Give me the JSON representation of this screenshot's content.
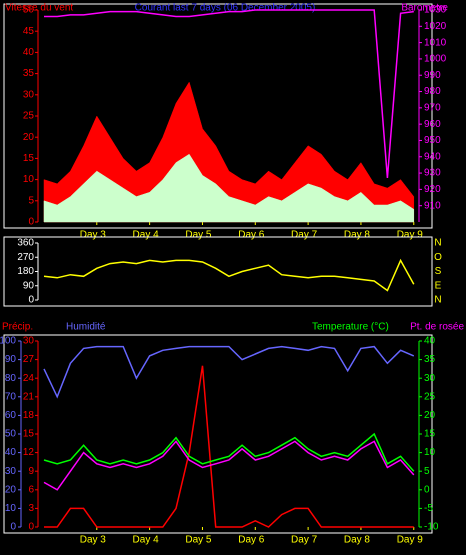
{
  "chart_data": [
    {
      "type": "area",
      "title": "Courant last 7 days (06 December 2005)",
      "x": [
        2.0,
        2.25,
        2.5,
        2.75,
        3.0,
        3.25,
        3.5,
        3.75,
        4.0,
        4.25,
        4.5,
        4.75,
        5.0,
        5.25,
        5.5,
        5.75,
        6.0,
        6.25,
        6.5,
        6.75,
        7.0,
        7.25,
        7.5,
        7.75,
        8.0,
        8.25,
        8.5,
        8.75,
        9.0
      ],
      "xlim": [
        1.925,
        9.08
      ],
      "xticks": [
        {
          "value": 3,
          "label": "Day 3"
        },
        {
          "value": 4,
          "label": "Day 4"
        },
        {
          "value": 5,
          "label": "Day 5"
        },
        {
          "value": 6,
          "label": "Day 6"
        },
        {
          "value": 7,
          "label": "Day 7"
        },
        {
          "value": 8,
          "label": "Day 8"
        },
        {
          "value": 9,
          "label": "Day 9"
        }
      ],
      "xtick_color": "#ffff00",
      "ylim": [
        0,
        50
      ],
      "yticks": [
        0,
        5,
        10,
        15,
        20,
        25,
        30,
        35,
        40,
        45,
        50
      ],
      "ycolor": "#ff0000",
      "y2lim": [
        900,
        1030
      ],
      "y2ticks": [
        910,
        920,
        930,
        940,
        950,
        960,
        970,
        980,
        990,
        1000,
        1010,
        1020,
        1030
      ],
      "y2color": "#ff00ff",
      "series": [
        {
          "name": "Vitesse du vent",
          "color": "#ff0000",
          "values": [
            10,
            9,
            12,
            18,
            25,
            20,
            15,
            12,
            14,
            20,
            28,
            33,
            22,
            18,
            12,
            10,
            9,
            12,
            10,
            14,
            18,
            16,
            12,
            10,
            14,
            9,
            8,
            10,
            6
          ]
        },
        {
          "color": "#ccffcc",
          "values": [
            5,
            4,
            6,
            9,
            12,
            10,
            8,
            6,
            7,
            10,
            14,
            16,
            11,
            9,
            6,
            5,
            4,
            6,
            5,
            7,
            9,
            8,
            6,
            5,
            7,
            4,
            4,
            5,
            3
          ]
        },
        {
          "name": "Barometre",
          "color": "#ff00ff",
          "axis": "y2",
          "values": [
            1026,
            1026,
            1027,
            1027,
            1028,
            1029,
            1029,
            1029,
            1028,
            1027,
            1026,
            1026,
            1027,
            1028,
            1029,
            1029,
            1030,
            1030,
            1030,
            1030,
            1030,
            1030,
            1030,
            1030,
            1030,
            1030,
            927,
            1028,
            1029
          ]
        }
      ]
    },
    {
      "type": "line",
      "x": [
        2.0,
        2.25,
        2.5,
        2.75,
        3.0,
        3.25,
        3.5,
        3.75,
        4.0,
        4.25,
        4.5,
        4.75,
        5.0,
        5.25,
        5.5,
        5.75,
        6.0,
        6.25,
        6.5,
        6.75,
        7.0,
        7.25,
        7.5,
        7.75,
        8.0,
        8.25,
        8.5,
        8.75,
        9.0
      ],
      "xlim": [
        1.925,
        9.08
      ],
      "ylim": [
        0,
        360
      ],
      "yticks": [
        0,
        90,
        180,
        270,
        360
      ],
      "ycolor": "#ffffff",
      "compass": [
        "N",
        "O",
        "S",
        "E",
        "N"
      ],
      "compass_color": "#ffff00",
      "series": [
        {
          "color": "#ffff00",
          "values": [
            150,
            140,
            160,
            150,
            200,
            230,
            240,
            230,
            250,
            240,
            250,
            250,
            240,
            200,
            150,
            180,
            200,
            220,
            160,
            150,
            140,
            150,
            150,
            140,
            130,
            120,
            60,
            250,
            100
          ]
        }
      ]
    },
    {
      "type": "line",
      "x": [
        2.0,
        2.25,
        2.5,
        2.75,
        3.0,
        3.25,
        3.5,
        3.75,
        4.0,
        4.25,
        4.5,
        4.75,
        5.0,
        5.25,
        5.5,
        5.75,
        6.0,
        6.25,
        6.5,
        6.75,
        7.0,
        7.25,
        7.5,
        7.75,
        8.0,
        8.25,
        8.5,
        8.75,
        9.0
      ],
      "xlim": [
        1.925,
        9.08
      ],
      "xticks": [
        {
          "value": 3,
          "label": "Day 3"
        },
        {
          "value": 4,
          "label": "Day 4"
        },
        {
          "value": 5,
          "label": "Day 5"
        },
        {
          "value": 6,
          "label": "Day 6"
        },
        {
          "value": 7,
          "label": "Day 7"
        },
        {
          "value": 8,
          "label": "Day 8"
        },
        {
          "value": 9,
          "label": "Day 9"
        }
      ],
      "xtick_color": "#ffff00",
      "ylim": [
        0,
        30
      ],
      "yticks": [
        0,
        3,
        6,
        9,
        12,
        15,
        18,
        21,
        24,
        27,
        30
      ],
      "ycolor": "#ff0000",
      "y2lim": [
        -10,
        40
      ],
      "y2ticks": [
        -10,
        -5,
        0,
        5,
        10,
        15,
        20,
        25,
        30,
        35,
        40
      ],
      "y2color": "#00ff00",
      "y3lim": [
        0,
        100
      ],
      "y3ticks": [
        0,
        10,
        20,
        30,
        40,
        50,
        60,
        70,
        80,
        90,
        100
      ],
      "y3color": "#6666ff",
      "series": [
        {
          "name": "Précip.",
          "color": "#ff0000",
          "values": [
            0,
            0,
            3,
            3,
            0,
            0,
            0,
            0,
            0,
            0,
            3,
            12,
            26,
            0,
            0,
            0,
            1,
            0,
            2,
            3,
            3,
            0,
            0,
            0,
            0,
            0,
            0,
            0,
            0
          ]
        },
        {
          "name": "Humidité",
          "color": "#6666ff",
          "axis": "y3",
          "values": [
            85,
            70,
            88,
            96,
            97,
            97,
            97,
            80,
            92,
            95,
            96,
            97,
            97,
            97,
            97,
            90,
            93,
            96,
            97,
            96,
            95,
            97,
            96,
            84,
            96,
            97,
            88,
            95,
            92
          ]
        },
        {
          "name": "Temperature (°C)",
          "color": "#00ff00",
          "axis": "y2",
          "values": [
            8,
            7,
            8,
            12,
            8,
            7,
            8,
            7,
            8,
            10,
            14,
            9,
            7,
            8,
            9,
            12,
            9,
            10,
            12,
            14,
            11,
            9,
            10,
            9,
            12,
            15,
            7,
            9,
            5
          ]
        },
        {
          "name": "Pt. de rosée",
          "color": "#ff00ff",
          "axis": "y2",
          "values": [
            2,
            0,
            5,
            10,
            7,
            6,
            7,
            6,
            7,
            9,
            13,
            8,
            6,
            7,
            8,
            11,
            8,
            9,
            11,
            13,
            10,
            8,
            9,
            8,
            11,
            13,
            6,
            8,
            4
          ]
        }
      ]
    }
  ]
}
